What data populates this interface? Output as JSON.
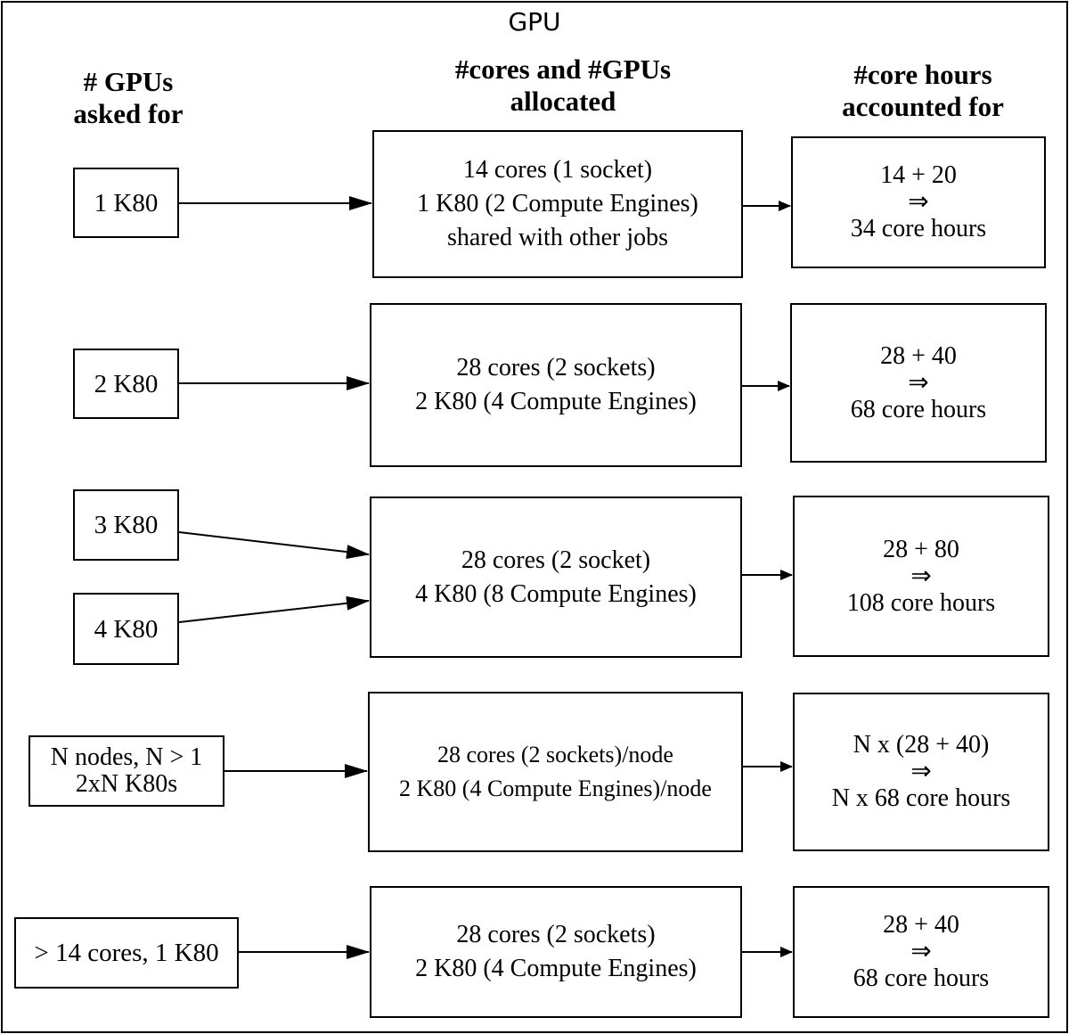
{
  "title": "GPU",
  "headers": {
    "asked": "# GPUs\nasked for",
    "allocated": "#cores and #GPUs\nallocated",
    "accounted": "#core hours\naccounted for"
  },
  "rows": [
    {
      "requests": [
        "1 K80"
      ],
      "allocation": [
        "14 cores (1 socket)",
        "1 K80 (2 Compute Engines)",
        "shared with other jobs"
      ],
      "accounting": [
        "14 + 20",
        "⇒",
        "34 core hours"
      ]
    },
    {
      "requests": [
        "2 K80"
      ],
      "allocation": [
        "28 cores (2 sockets)",
        "2 K80 (4 Compute Engines)"
      ],
      "accounting": [
        "28 + 40",
        "⇒",
        "68 core hours"
      ]
    },
    {
      "requests": [
        "3 K80",
        "4 K80"
      ],
      "allocation": [
        "28 cores (2 socket)",
        "4 K80 (8 Compute Engines)"
      ],
      "accounting": [
        "28 + 80",
        "⇒",
        "108 core hours"
      ]
    },
    {
      "requests": [
        "N nodes, N > 1",
        "2xN K80s"
      ],
      "allocation": [
        "28 cores (2 sockets)/node",
        "2 K80 (4 Compute Engines)/node"
      ],
      "accounting": [
        "N x (28 + 40)",
        "⇒",
        "N x 68 core hours"
      ]
    },
    {
      "requests": [
        "> 14 cores, 1 K80"
      ],
      "allocation": [
        "28 cores (2 sockets)",
        "2 K80 (4 Compute Engines)"
      ],
      "accounting": [
        "28 + 40",
        "⇒",
        "68 core hours"
      ]
    }
  ]
}
